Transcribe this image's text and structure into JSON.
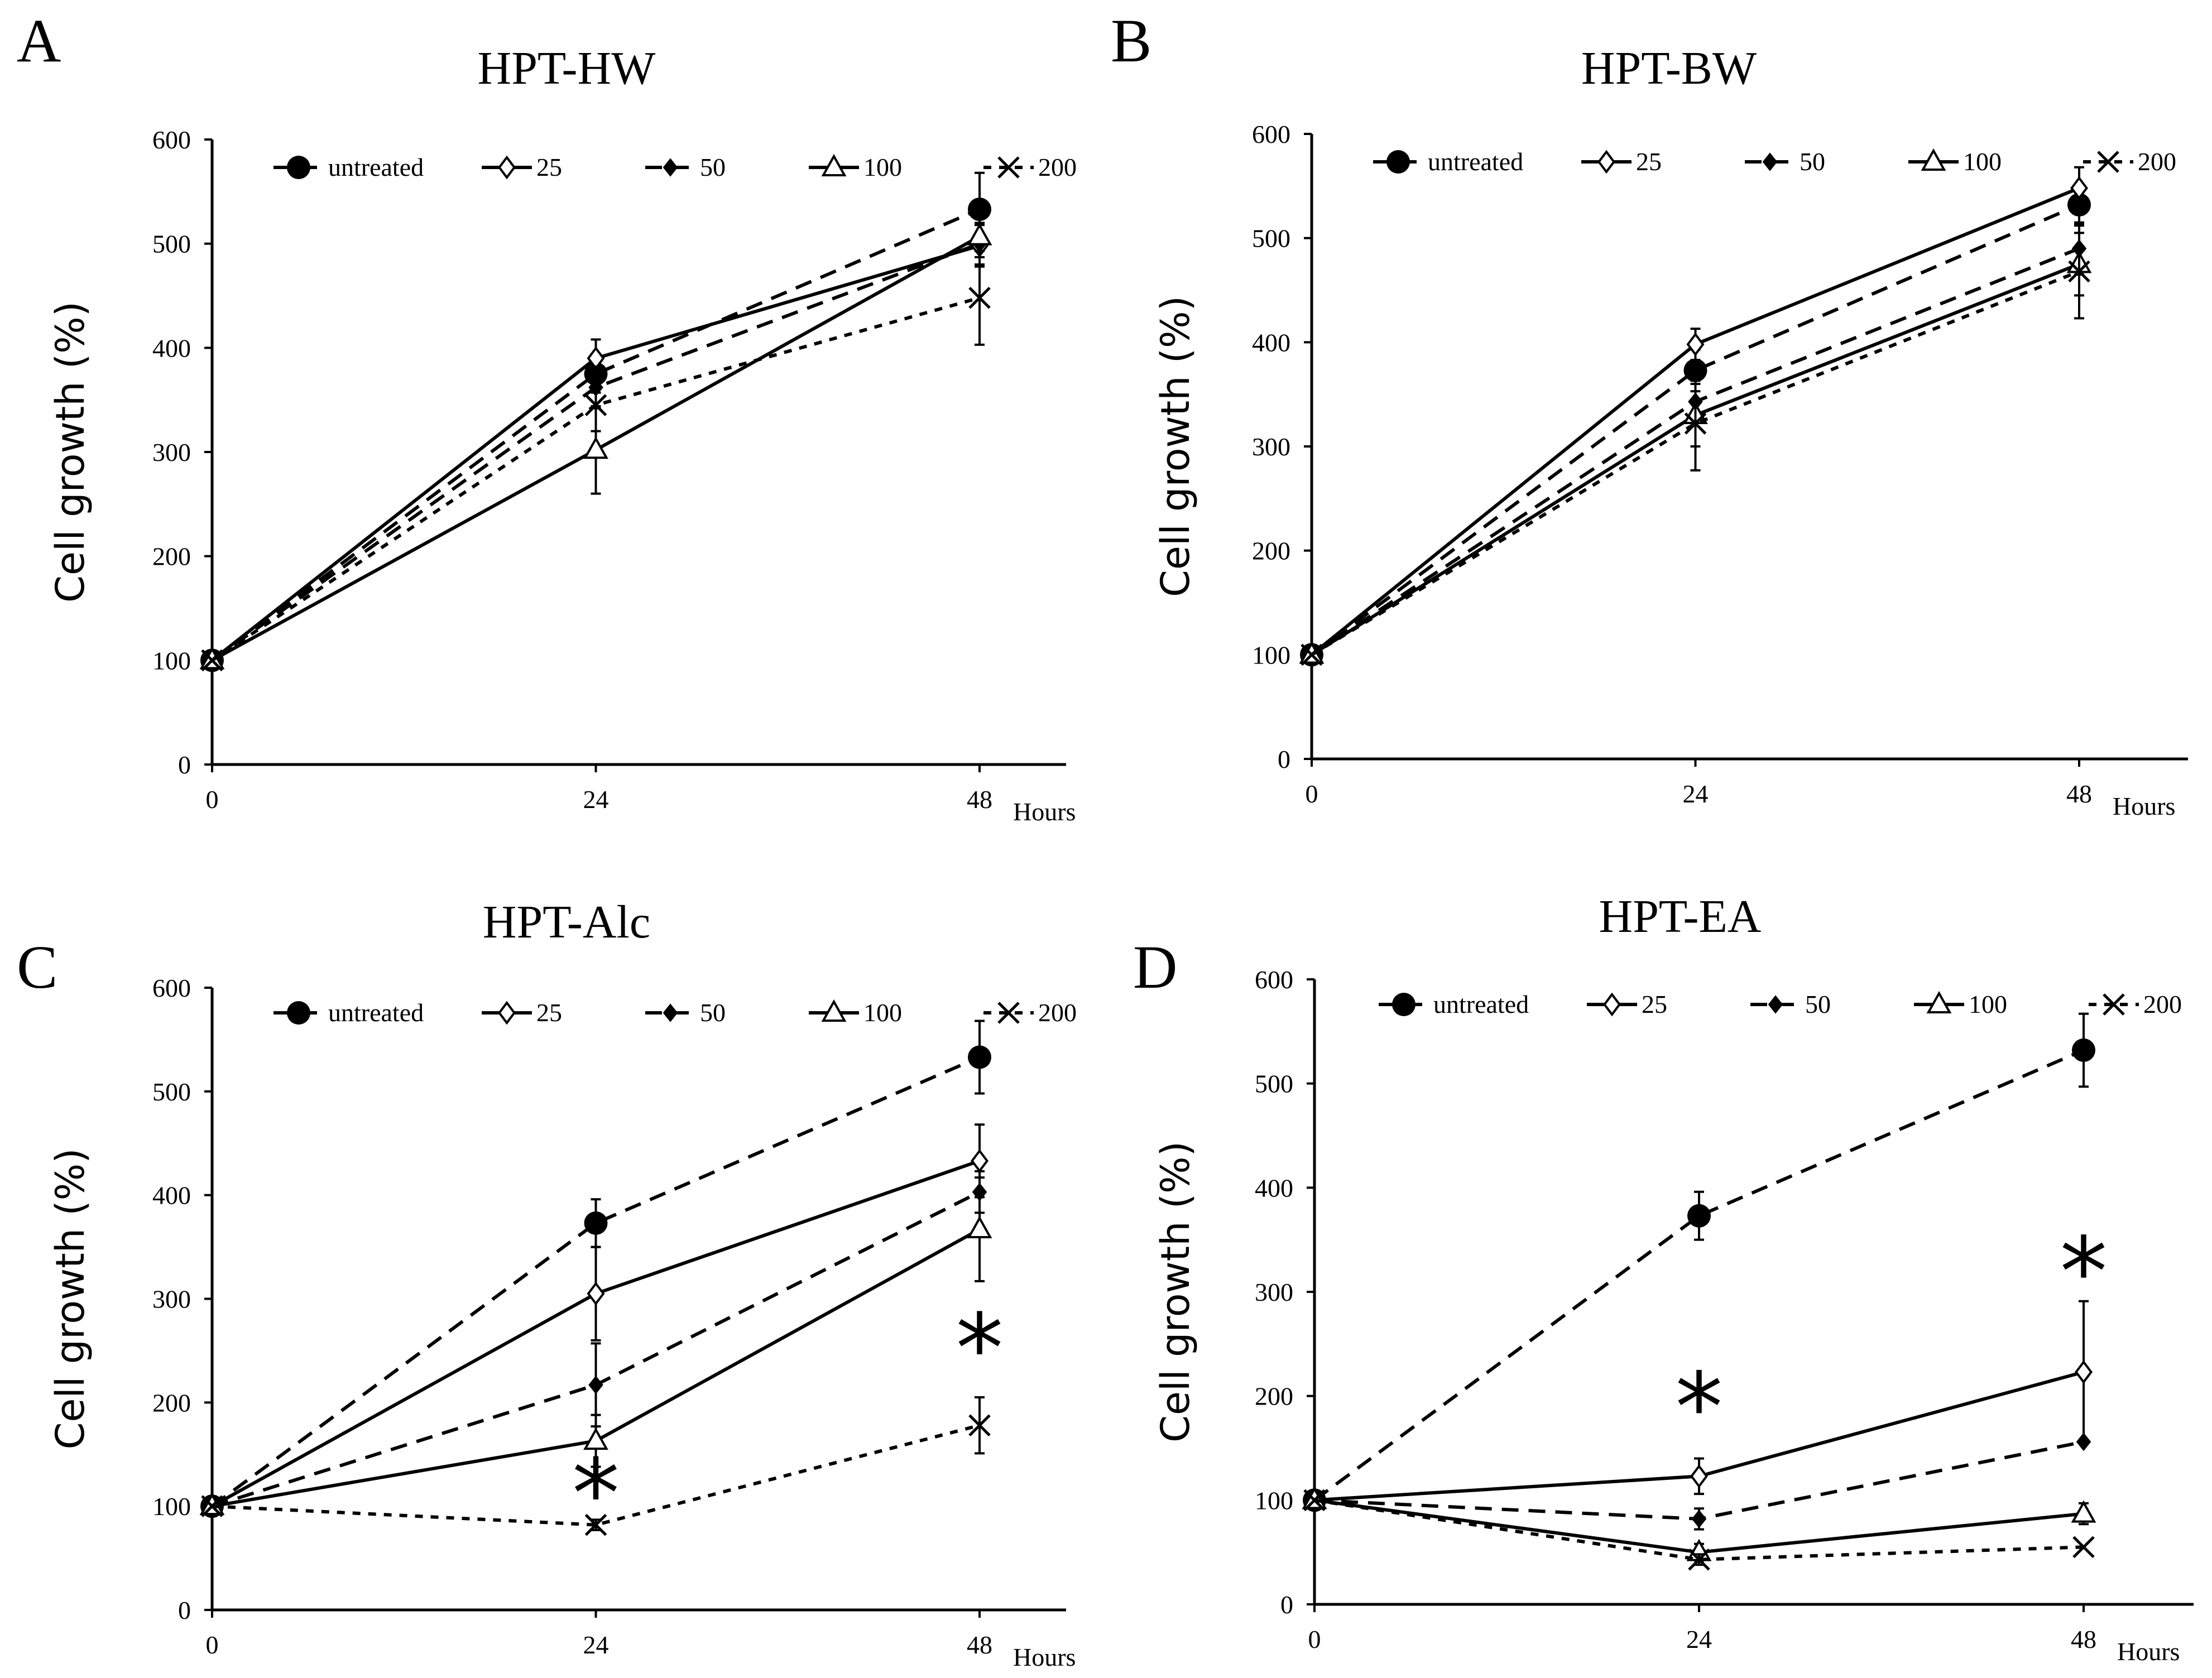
{
  "figure": {
    "x_unit": "Hours",
    "y_axis_label": "Cell growth (%)"
  },
  "chart_data": [
    {
      "type": "line",
      "panel": "A",
      "title": "HPT-HW",
      "xlabel": "Hours",
      "ylabel": "Cell growth (%)",
      "x": [
        0,
        24,
        48
      ],
      "xticks": [
        "0",
        "24",
        "48"
      ],
      "ylim": [
        0,
        600
      ],
      "yticks": [
        "0",
        "100",
        "200",
        "300",
        "400",
        "500",
        "600"
      ],
      "legend_position": "top",
      "series": [
        {
          "name": "untreated",
          "marker": "filled-circle",
          "line": "dashed",
          "values": [
            100,
            375,
            533
          ],
          "errors": [
            0,
            18,
            35
          ]
        },
        {
          "name": "25",
          "marker": "open-diamond",
          "line": "solid",
          "values": [
            100,
            390,
            498
          ],
          "errors": [
            0,
            18,
            20
          ]
        },
        {
          "name": "50",
          "marker": "filled-diamond",
          "line": "dashed",
          "values": [
            100,
            362,
            500
          ],
          "errors": [
            0,
            20,
            20
          ]
        },
        {
          "name": "100",
          "marker": "open-triangle",
          "line": "solid",
          "values": [
            100,
            302,
            507
          ],
          "errors": [
            0,
            42,
            20
          ]
        },
        {
          "name": "200",
          "marker": "cross",
          "line": "short-dashed",
          "values": [
            100,
            345,
            448
          ],
          "errors": [
            0,
            25,
            45
          ]
        }
      ],
      "annotations": []
    },
    {
      "type": "line",
      "panel": "B",
      "title": "HPT-BW",
      "xlabel": "Hours",
      "ylabel": "Cell growth (%)",
      "x": [
        0,
        24,
        48
      ],
      "xticks": [
        "0",
        "24",
        "48"
      ],
      "ylim": [
        0,
        600
      ],
      "yticks": [
        "0",
        "100",
        "200",
        "300",
        "400",
        "500",
        "600"
      ],
      "legend_position": "top",
      "series": [
        {
          "name": "untreated",
          "marker": "filled-circle",
          "line": "dashed",
          "values": [
            100,
            373,
            532
          ],
          "errors": [
            0,
            20,
            20
          ]
        },
        {
          "name": "25",
          "marker": "open-diamond",
          "line": "solid",
          "values": [
            100,
            398,
            548
          ],
          "errors": [
            0,
            15,
            20
          ]
        },
        {
          "name": "50",
          "marker": "filled-diamond",
          "line": "dashed",
          "values": [
            100,
            343,
            490
          ],
          "errors": [
            0,
            20,
            25
          ]
        },
        {
          "name": "100",
          "marker": "open-triangle",
          "line": "solid",
          "values": [
            100,
            330,
            475
          ],
          "errors": [
            0,
            30,
            30
          ]
        },
        {
          "name": "200",
          "marker": "cross",
          "line": "short-dashed",
          "values": [
            100,
            322,
            468
          ],
          "errors": [
            0,
            45,
            45
          ]
        }
      ],
      "annotations": []
    },
    {
      "type": "line",
      "panel": "C",
      "title": "HPT-Alc",
      "xlabel": "Hours",
      "ylabel": "Cell growth (%)",
      "x": [
        0,
        24,
        48
      ],
      "xticks": [
        "0",
        "24",
        "48"
      ],
      "ylim": [
        0,
        600
      ],
      "yticks": [
        "0",
        "100",
        "200",
        "300",
        "400",
        "500",
        "600"
      ],
      "legend_position": "top",
      "series": [
        {
          "name": "untreated",
          "marker": "filled-circle",
          "line": "dashed",
          "values": [
            100,
            373,
            533
          ],
          "errors": [
            0,
            23,
            35
          ]
        },
        {
          "name": "25",
          "marker": "open-diamond",
          "line": "solid",
          "values": [
            100,
            305,
            433
          ],
          "errors": [
            0,
            45,
            35
          ]
        },
        {
          "name": "50",
          "marker": "filled-diamond",
          "line": "dashed",
          "values": [
            100,
            217,
            403
          ],
          "errors": [
            0,
            40,
            20
          ]
        },
        {
          "name": "100",
          "marker": "open-triangle",
          "line": "solid",
          "values": [
            100,
            163,
            367
          ],
          "errors": [
            0,
            25,
            50
          ]
        },
        {
          "name": "200",
          "marker": "cross",
          "line": "short-dashed",
          "values": [
            100,
            82,
            178
          ],
          "errors": [
            0,
            5,
            27
          ]
        }
      ],
      "annotations": [
        {
          "text": "*",
          "x": 24,
          "y": 118
        },
        {
          "text": "*",
          "x": 48,
          "y": 258
        }
      ]
    },
    {
      "type": "line",
      "panel": "D",
      "title": "HPT-EA",
      "xlabel": "Hours",
      "ylabel": "Cell growth (%)",
      "x": [
        0,
        24,
        48
      ],
      "xticks": [
        "0",
        "24",
        "48"
      ],
      "ylim": [
        0,
        600
      ],
      "yticks": [
        "0",
        "100",
        "200",
        "300",
        "400",
        "500",
        "600"
      ],
      "legend_position": "top",
      "series": [
        {
          "name": "untreated",
          "marker": "filled-circle",
          "line": "dashed",
          "values": [
            100,
            373,
            532
          ],
          "errors": [
            0,
            23,
            35
          ]
        },
        {
          "name": "25",
          "marker": "open-diamond",
          "line": "solid",
          "values": [
            100,
            123,
            223
          ],
          "errors": [
            0,
            17,
            68
          ]
        },
        {
          "name": "50",
          "marker": "filled-diamond",
          "line": "dashed",
          "values": [
            100,
            82,
            156
          ],
          "errors": [
            0,
            10,
            0
          ]
        },
        {
          "name": "100",
          "marker": "open-triangle",
          "line": "solid",
          "values": [
            100,
            50,
            87
          ],
          "errors": [
            0,
            8,
            10
          ]
        },
        {
          "name": "200",
          "marker": "cross",
          "line": "short-dashed",
          "values": [
            100,
            43,
            55
          ],
          "errors": [
            0,
            5,
            0
          ]
        }
      ],
      "annotations": [
        {
          "text": "*",
          "x": 24,
          "y": 195
        },
        {
          "text": "*",
          "x": 48,
          "y": 325
        }
      ]
    }
  ]
}
